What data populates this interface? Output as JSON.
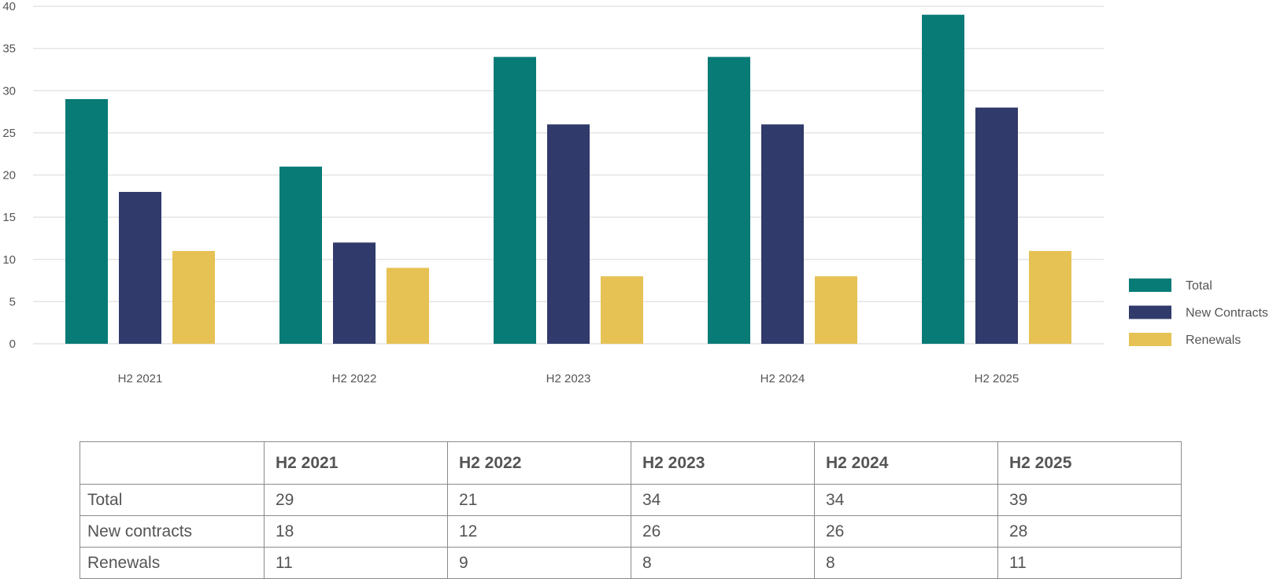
{
  "chart_data": {
    "type": "bar",
    "categories": [
      "H2 2021",
      "H2 2022",
      "H2 2023",
      "H2 2024",
      "H2 2025"
    ],
    "series": [
      {
        "name": "Total",
        "values": [
          29,
          21,
          34,
          34,
          39
        ],
        "color": "#087b76"
      },
      {
        "name": "New Contracts",
        "values": [
          18,
          12,
          26,
          26,
          28
        ],
        "color": "#303a6b"
      },
      {
        "name": "Renewals",
        "values": [
          11,
          9,
          8,
          8,
          11
        ],
        "color": "#e6c255"
      }
    ],
    "ylim": [
      0,
      40
    ],
    "yticks": [
      0,
      5,
      10,
      15,
      20,
      25,
      30,
      35,
      40
    ],
    "grid": true,
    "legend_position": "right"
  },
  "table": {
    "corner": "",
    "headers": [
      "H2 2021",
      "H2 2022",
      "H2 2023",
      "H2 2024",
      "H2 2025"
    ],
    "rows": [
      {
        "label": "Total",
        "values": [
          "29",
          "21",
          "34",
          "34",
          "39"
        ]
      },
      {
        "label": "New contracts",
        "values": [
          "18",
          "12",
          "26",
          "26",
          "28"
        ]
      },
      {
        "label": "Renewals",
        "values": [
          "11",
          "9",
          "8",
          "8",
          "11"
        ]
      }
    ]
  }
}
